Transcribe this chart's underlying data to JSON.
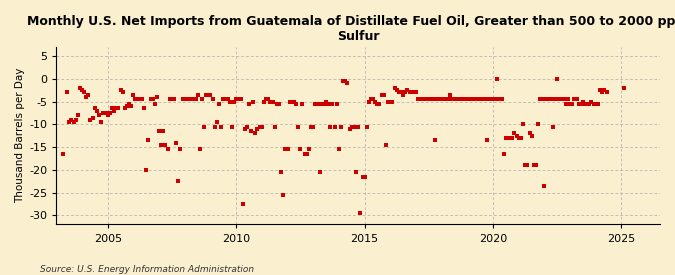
{
  "title": "Monthly U.S. Net Imports from Guatemala of Distillate Fuel Oil, Greater than 500 to 2000 ppm\nSulfur",
  "ylabel": "Thousand Barrels per Day",
  "source": "Source: U.S. Energy Information Administration",
  "marker_color": "#CC0000",
  "background_color": "#FAF0D0",
  "grid_color": "#AAAAAA",
  "ylim": [
    -32,
    7
  ],
  "yticks": [
    -30,
    -25,
    -20,
    -15,
    -10,
    -5,
    0,
    5
  ],
  "xlim": [
    2003.0,
    2026.5
  ],
  "xticks": [
    2005,
    2010,
    2015,
    2020,
    2025
  ],
  "data_points": [
    [
      2003.25,
      -16.5
    ],
    [
      2003.42,
      -3.0
    ],
    [
      2003.5,
      -9.5
    ],
    [
      2003.58,
      -9.0
    ],
    [
      2003.67,
      -9.5
    ],
    [
      2003.75,
      -9.0
    ],
    [
      2003.83,
      -8.0
    ],
    [
      2003.92,
      -2.0
    ],
    [
      2004.0,
      -2.5
    ],
    [
      2004.08,
      -3.0
    ],
    [
      2004.17,
      -4.0
    ],
    [
      2004.25,
      -3.5
    ],
    [
      2004.33,
      -9.0
    ],
    [
      2004.42,
      -8.5
    ],
    [
      2004.5,
      -6.5
    ],
    [
      2004.58,
      -7.0
    ],
    [
      2004.67,
      -8.0
    ],
    [
      2004.75,
      -9.5
    ],
    [
      2004.83,
      -7.5
    ],
    [
      2004.92,
      -7.5
    ],
    [
      2005.0,
      -8.0
    ],
    [
      2005.08,
      -7.5
    ],
    [
      2005.17,
      -6.5
    ],
    [
      2005.25,
      -7.0
    ],
    [
      2005.33,
      -6.5
    ],
    [
      2005.42,
      -6.5
    ],
    [
      2005.5,
      -2.5
    ],
    [
      2005.58,
      -3.0
    ],
    [
      2005.67,
      -6.5
    ],
    [
      2005.75,
      -6.0
    ],
    [
      2005.83,
      -5.5
    ],
    [
      2005.92,
      -6.0
    ],
    [
      2006.0,
      -3.5
    ],
    [
      2006.08,
      -4.5
    ],
    [
      2006.17,
      -4.5
    ],
    [
      2006.25,
      -4.5
    ],
    [
      2006.33,
      -4.5
    ],
    [
      2006.42,
      -6.5
    ],
    [
      2006.5,
      -20.0
    ],
    [
      2006.58,
      -13.5
    ],
    [
      2006.67,
      -4.5
    ],
    [
      2006.75,
      -4.5
    ],
    [
      2006.83,
      -5.5
    ],
    [
      2006.92,
      -4.0
    ],
    [
      2007.0,
      -11.5
    ],
    [
      2007.08,
      -14.5
    ],
    [
      2007.17,
      -11.5
    ],
    [
      2007.25,
      -14.5
    ],
    [
      2007.33,
      -15.5
    ],
    [
      2007.42,
      -4.5
    ],
    [
      2007.5,
      -4.5
    ],
    [
      2007.58,
      -4.5
    ],
    [
      2007.67,
      -14.0
    ],
    [
      2007.75,
      -22.5
    ],
    [
      2007.83,
      -15.5
    ],
    [
      2007.92,
      -4.5
    ],
    [
      2008.0,
      -4.5
    ],
    [
      2008.08,
      -4.5
    ],
    [
      2008.17,
      -4.5
    ],
    [
      2008.25,
      -4.5
    ],
    [
      2008.33,
      -4.5
    ],
    [
      2008.42,
      -4.5
    ],
    [
      2008.5,
      -3.5
    ],
    [
      2008.58,
      -15.5
    ],
    [
      2008.67,
      -4.5
    ],
    [
      2008.75,
      -10.5
    ],
    [
      2008.83,
      -3.5
    ],
    [
      2008.92,
      -3.5
    ],
    [
      2009.0,
      -3.5
    ],
    [
      2009.08,
      -4.5
    ],
    [
      2009.17,
      -10.5
    ],
    [
      2009.25,
      -9.5
    ],
    [
      2009.33,
      -5.5
    ],
    [
      2009.42,
      -10.5
    ],
    [
      2009.5,
      -4.5
    ],
    [
      2009.58,
      -4.5
    ],
    [
      2009.67,
      -4.5
    ],
    [
      2009.75,
      -5.0
    ],
    [
      2009.83,
      -10.5
    ],
    [
      2009.92,
      -5.0
    ],
    [
      2010.0,
      -4.5
    ],
    [
      2010.08,
      -4.5
    ],
    [
      2010.17,
      -4.5
    ],
    [
      2010.25,
      -27.5
    ],
    [
      2010.33,
      -11.0
    ],
    [
      2010.42,
      -10.5
    ],
    [
      2010.5,
      -5.5
    ],
    [
      2010.58,
      -11.5
    ],
    [
      2010.67,
      -5.0
    ],
    [
      2010.75,
      -12.0
    ],
    [
      2010.83,
      -11.0
    ],
    [
      2010.92,
      -10.5
    ],
    [
      2011.0,
      -10.5
    ],
    [
      2011.08,
      -5.0
    ],
    [
      2011.17,
      -4.5
    ],
    [
      2011.25,
      -4.5
    ],
    [
      2011.33,
      -5.0
    ],
    [
      2011.42,
      -5.0
    ],
    [
      2011.5,
      -10.5
    ],
    [
      2011.58,
      -5.5
    ],
    [
      2011.67,
      -5.5
    ],
    [
      2011.75,
      -20.5
    ],
    [
      2011.83,
      -25.5
    ],
    [
      2011.92,
      -15.5
    ],
    [
      2012.0,
      -15.5
    ],
    [
      2012.08,
      -5.0
    ],
    [
      2012.17,
      -5.0
    ],
    [
      2012.25,
      -5.0
    ],
    [
      2012.33,
      -5.5
    ],
    [
      2012.42,
      -10.5
    ],
    [
      2012.5,
      -15.5
    ],
    [
      2012.58,
      -5.5
    ],
    [
      2012.67,
      -16.5
    ],
    [
      2012.75,
      -16.5
    ],
    [
      2012.83,
      -15.5
    ],
    [
      2012.92,
      -10.5
    ],
    [
      2013.0,
      -10.5
    ],
    [
      2013.08,
      -5.5
    ],
    [
      2013.17,
      -5.5
    ],
    [
      2013.25,
      -20.5
    ],
    [
      2013.33,
      -5.5
    ],
    [
      2013.42,
      -5.5
    ],
    [
      2013.5,
      -5.0
    ],
    [
      2013.58,
      -5.5
    ],
    [
      2013.67,
      -10.5
    ],
    [
      2013.75,
      -5.5
    ],
    [
      2013.83,
      -10.5
    ],
    [
      2013.92,
      -5.5
    ],
    [
      2014.0,
      -15.5
    ],
    [
      2014.08,
      -10.5
    ],
    [
      2014.17,
      -0.5
    ],
    [
      2014.25,
      -0.5
    ],
    [
      2014.33,
      -1.0
    ],
    [
      2014.42,
      -11.0
    ],
    [
      2014.5,
      -10.5
    ],
    [
      2014.58,
      -10.5
    ],
    [
      2014.67,
      -20.5
    ],
    [
      2014.75,
      -10.5
    ],
    [
      2014.83,
      -29.5
    ],
    [
      2014.92,
      -21.5
    ],
    [
      2015.0,
      -21.5
    ],
    [
      2015.08,
      -10.5
    ],
    [
      2015.17,
      -5.0
    ],
    [
      2015.25,
      -4.5
    ],
    [
      2015.33,
      -4.5
    ],
    [
      2015.42,
      -5.0
    ],
    [
      2015.5,
      -5.5
    ],
    [
      2015.58,
      -5.5
    ],
    [
      2015.67,
      -3.5
    ],
    [
      2015.75,
      -3.5
    ],
    [
      2015.83,
      -14.5
    ],
    [
      2015.92,
      -5.0
    ],
    [
      2016.0,
      -5.0
    ],
    [
      2016.08,
      -5.0
    ],
    [
      2016.17,
      -2.0
    ],
    [
      2016.25,
      -2.5
    ],
    [
      2016.33,
      -3.0
    ],
    [
      2016.42,
      -3.0
    ],
    [
      2016.5,
      -3.5
    ],
    [
      2016.58,
      -3.0
    ],
    [
      2016.67,
      -2.5
    ],
    [
      2016.75,
      -3.0
    ],
    [
      2016.83,
      -3.0
    ],
    [
      2016.92,
      -3.0
    ],
    [
      2017.0,
      -3.0
    ],
    [
      2017.08,
      -4.5
    ],
    [
      2017.17,
      -4.5
    ],
    [
      2017.25,
      -4.5
    ],
    [
      2017.33,
      -4.5
    ],
    [
      2017.42,
      -4.5
    ],
    [
      2017.5,
      -4.5
    ],
    [
      2017.58,
      -4.5
    ],
    [
      2017.67,
      -4.5
    ],
    [
      2017.75,
      -13.5
    ],
    [
      2017.83,
      -4.5
    ],
    [
      2017.92,
      -4.5
    ],
    [
      2018.0,
      -4.5
    ],
    [
      2018.08,
      -4.5
    ],
    [
      2018.17,
      -4.5
    ],
    [
      2018.25,
      -4.5
    ],
    [
      2018.33,
      -3.5
    ],
    [
      2018.42,
      -4.5
    ],
    [
      2018.5,
      -4.5
    ],
    [
      2018.58,
      -4.5
    ],
    [
      2018.67,
      -4.5
    ],
    [
      2018.75,
      -4.5
    ],
    [
      2018.83,
      -4.5
    ],
    [
      2018.92,
      -4.5
    ],
    [
      2019.0,
      -4.5
    ],
    [
      2019.08,
      -4.5
    ],
    [
      2019.17,
      -4.5
    ],
    [
      2019.25,
      -4.5
    ],
    [
      2019.33,
      -4.5
    ],
    [
      2019.42,
      -4.5
    ],
    [
      2019.5,
      -4.5
    ],
    [
      2019.58,
      -4.5
    ],
    [
      2019.67,
      -4.5
    ],
    [
      2019.75,
      -13.5
    ],
    [
      2019.83,
      -4.5
    ],
    [
      2019.92,
      -4.5
    ],
    [
      2020.0,
      -4.5
    ],
    [
      2020.08,
      -4.5
    ],
    [
      2020.17,
      0.0
    ],
    [
      2020.25,
      -4.5
    ],
    [
      2020.33,
      -4.5
    ],
    [
      2020.42,
      -16.5
    ],
    [
      2020.5,
      -13.0
    ],
    [
      2020.58,
      -13.0
    ],
    [
      2020.67,
      -13.0
    ],
    [
      2020.75,
      -13.0
    ],
    [
      2020.83,
      -12.0
    ],
    [
      2020.92,
      -12.5
    ],
    [
      2021.0,
      -13.0
    ],
    [
      2021.08,
      -13.0
    ],
    [
      2021.17,
      -10.0
    ],
    [
      2021.25,
      -19.0
    ],
    [
      2021.33,
      -19.0
    ],
    [
      2021.42,
      -12.0
    ],
    [
      2021.5,
      -12.5
    ],
    [
      2021.58,
      -19.0
    ],
    [
      2021.67,
      -19.0
    ],
    [
      2021.75,
      -10.0
    ],
    [
      2021.83,
      -4.5
    ],
    [
      2021.92,
      -4.5
    ],
    [
      2022.0,
      -23.5
    ],
    [
      2022.08,
      -4.5
    ],
    [
      2022.17,
      -4.5
    ],
    [
      2022.25,
      -4.5
    ],
    [
      2022.33,
      -10.5
    ],
    [
      2022.42,
      -4.5
    ],
    [
      2022.5,
      0.0
    ],
    [
      2022.58,
      -4.5
    ],
    [
      2022.67,
      -4.5
    ],
    [
      2022.75,
      -4.5
    ],
    [
      2022.83,
      -5.5
    ],
    [
      2022.92,
      -4.5
    ],
    [
      2023.0,
      -5.5
    ],
    [
      2023.08,
      -5.5
    ],
    [
      2023.17,
      -4.5
    ],
    [
      2023.25,
      -4.5
    ],
    [
      2023.33,
      -5.5
    ],
    [
      2023.42,
      -5.5
    ],
    [
      2023.5,
      -5.0
    ],
    [
      2023.58,
      -5.5
    ],
    [
      2023.67,
      -5.5
    ],
    [
      2023.75,
      -5.5
    ],
    [
      2023.83,
      -5.0
    ],
    [
      2023.92,
      -5.5
    ],
    [
      2024.0,
      -5.5
    ],
    [
      2024.08,
      -5.5
    ],
    [
      2024.17,
      -2.5
    ],
    [
      2024.25,
      -3.0
    ],
    [
      2024.33,
      -2.5
    ],
    [
      2024.42,
      -3.0
    ],
    [
      2025.08,
      -2.0
    ]
  ]
}
